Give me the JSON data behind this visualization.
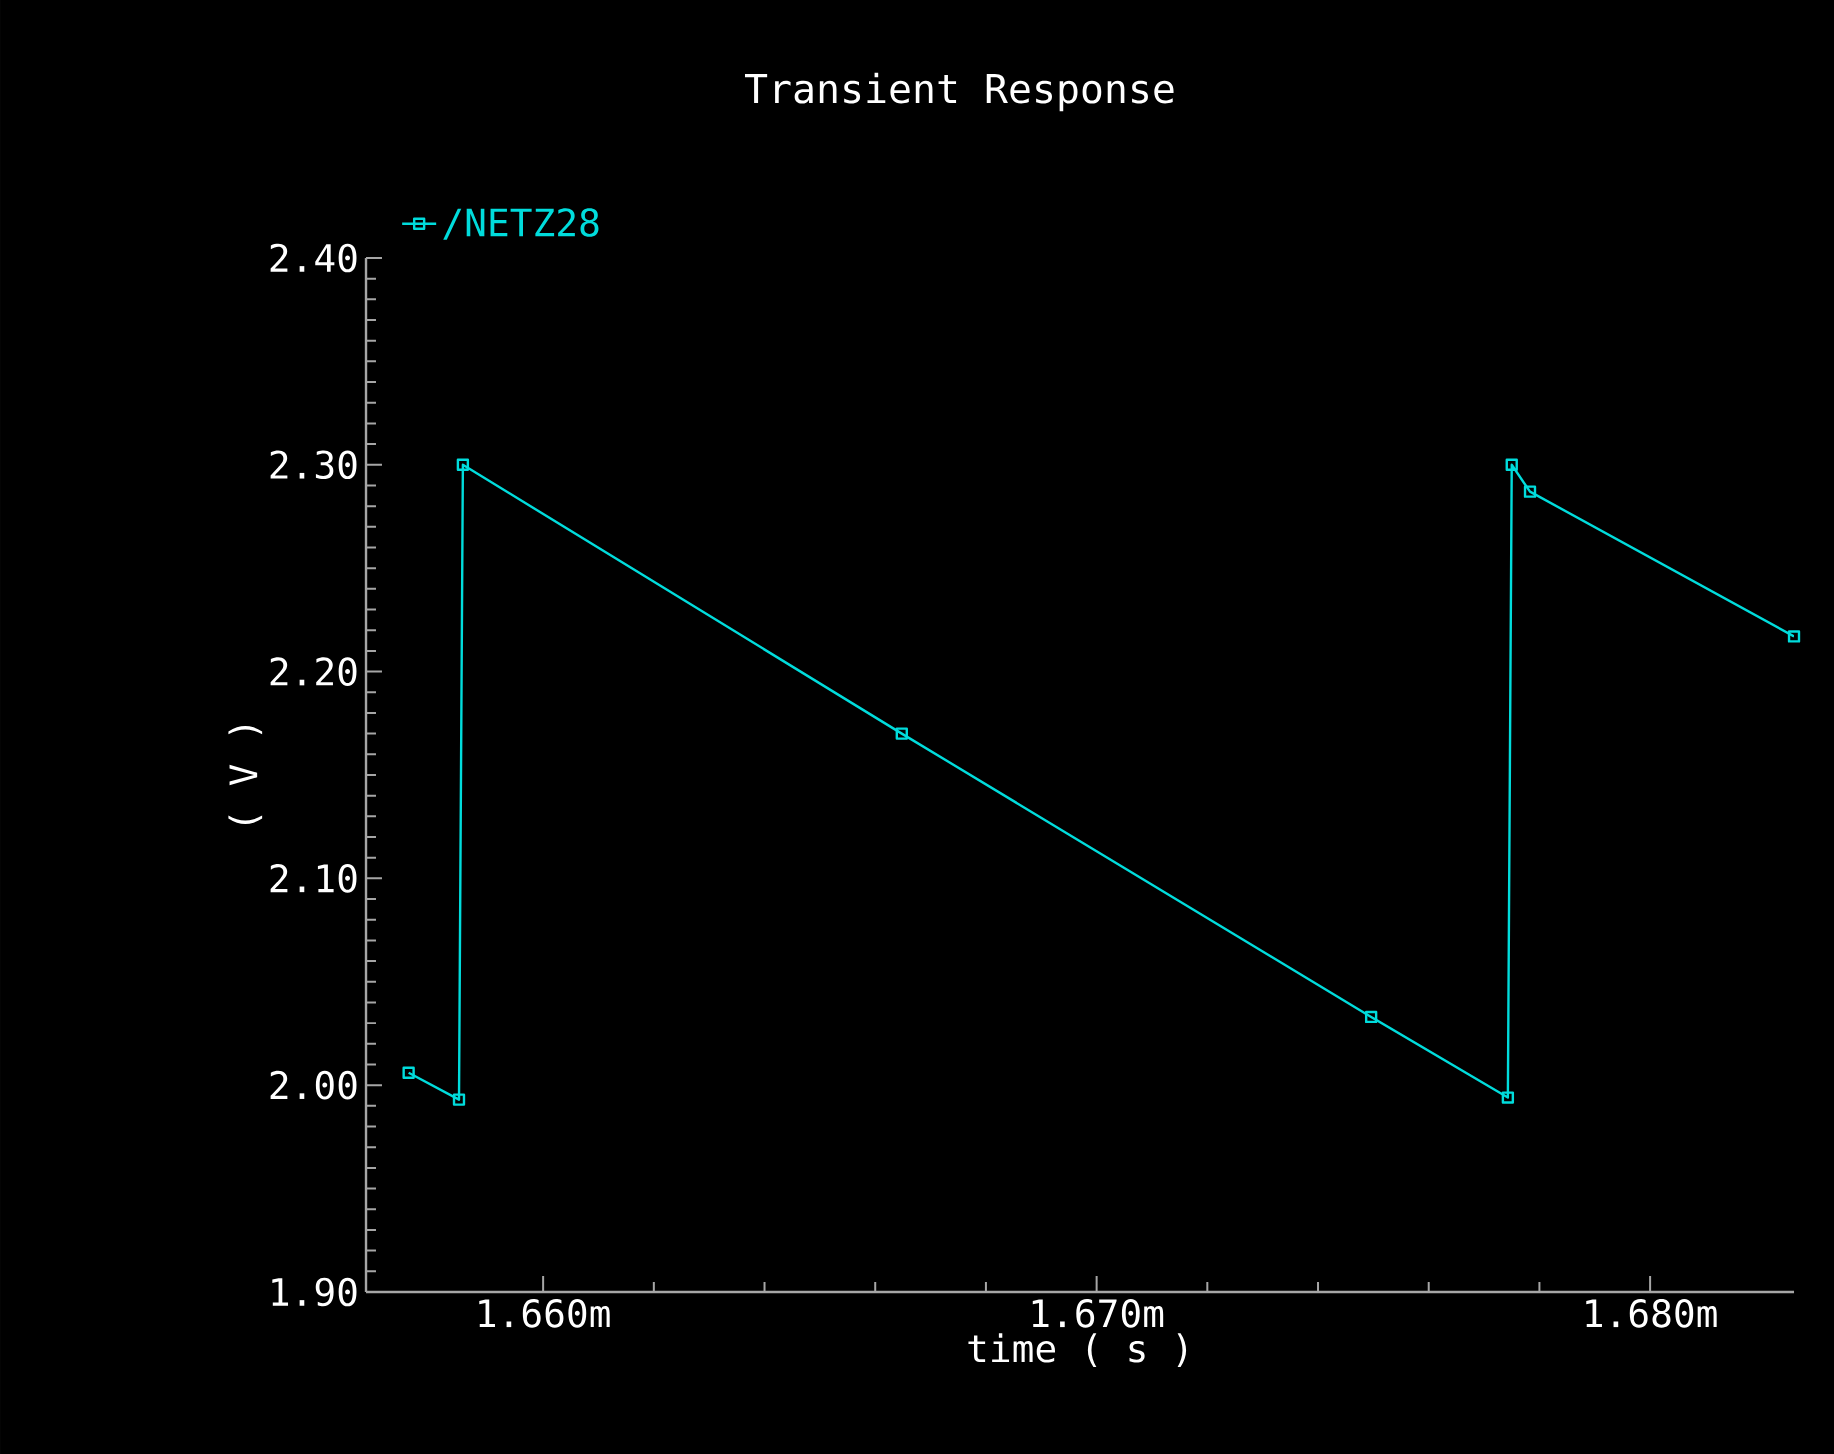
{
  "chart_data": {
    "type": "line",
    "title": "Transient Response",
    "xlabel": "time ( s )",
    "ylabel": "( V )",
    "xlim": [
      1.6568,
      1.6826
    ],
    "xticks": [
      {
        "value": 1.66,
        "label": "1.660m"
      },
      {
        "value": 1.67,
        "label": "1.670m"
      },
      {
        "value": 1.68,
        "label": "1.680m"
      }
    ],
    "ylim": [
      1.9,
      2.4
    ],
    "yticks": [
      {
        "value": 1.9,
        "label": "1.90"
      },
      {
        "value": 2.0,
        "label": "2.00"
      },
      {
        "value": 2.1,
        "label": "2.10"
      },
      {
        "value": 2.2,
        "label": "2.20"
      },
      {
        "value": 2.3,
        "label": "2.30"
      },
      {
        "value": 2.4,
        "label": "2.40"
      }
    ],
    "series": [
      {
        "name": "/NETZ28",
        "color": "#00dcdc",
        "x": [
          1.65757,
          1.65848,
          1.65855,
          1.66648,
          1.67496,
          1.67743,
          1.6775,
          1.67783,
          1.6826
        ],
        "values": [
          2.006,
          1.993,
          2.3,
          2.17,
          2.033,
          1.994,
          2.3,
          2.287,
          2.217
        ]
      }
    ],
    "marker": "square",
    "legend": "top left",
    "grid": false
  }
}
